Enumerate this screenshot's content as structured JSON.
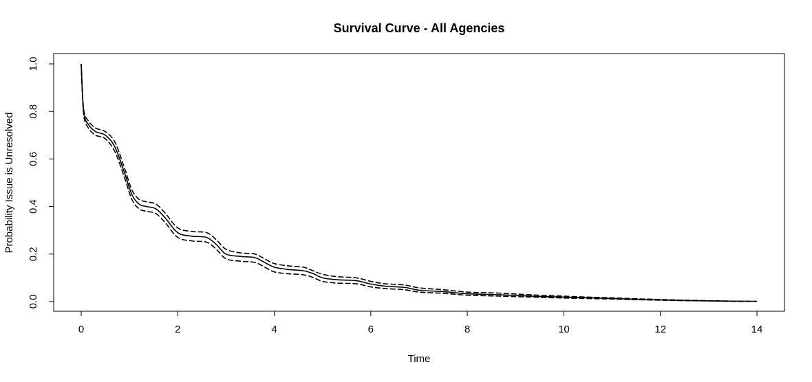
{
  "chart_data": {
    "type": "line",
    "title": "Survival Curve - All Agencies",
    "xlabel": "Time",
    "ylabel": "Probability Issue is Unresolved",
    "xlim": [
      0,
      14
    ],
    "ylim": [
      0,
      1
    ],
    "x_ticks": [
      "0",
      "2",
      "4",
      "6",
      "8",
      "10",
      "12",
      "14"
    ],
    "y_ticks": [
      "0.0",
      "0.2",
      "0.4",
      "0.6",
      "0.8",
      "1.0"
    ],
    "grid": false,
    "legend": "none",
    "line_color": "#000000",
    "series": [
      {
        "style": "dashed",
        "x": [
          0,
          0.05,
          0.15,
          0.3,
          0.5,
          0.7,
          0.9,
          1.05,
          1.2,
          1.35,
          1.55,
          1.75,
          2.0,
          2.3,
          2.6,
          2.8,
          3.0,
          3.3,
          3.6,
          3.8,
          4.0,
          4.3,
          4.6,
          4.8,
          5.0,
          5.3,
          5.7,
          6.0,
          6.3,
          6.7,
          7.0,
          7.5,
          8.0,
          8.5,
          9.0,
          9.5,
          10.0,
          10.5,
          11.0,
          11.5,
          12.0,
          12.5,
          13.0,
          13.5,
          14.0
        ],
        "y": [
          1.0,
          0.81,
          0.76,
          0.73,
          0.715,
          0.67,
          0.56,
          0.47,
          0.43,
          0.42,
          0.41,
          0.37,
          0.31,
          0.295,
          0.29,
          0.26,
          0.22,
          0.205,
          0.2,
          0.18,
          0.16,
          0.15,
          0.145,
          0.13,
          0.115,
          0.105,
          0.1,
          0.085,
          0.075,
          0.07,
          0.058,
          0.05,
          0.04,
          0.037,
          0.032,
          0.027,
          0.023,
          0.019,
          0.016,
          0.012,
          0.009,
          0.006,
          0.004,
          0.002,
          0.001
        ]
      },
      {
        "style": "solid",
        "x": [
          0,
          0.05,
          0.15,
          0.3,
          0.5,
          0.7,
          0.9,
          1.05,
          1.2,
          1.35,
          1.55,
          1.75,
          2.0,
          2.3,
          2.6,
          2.8,
          3.0,
          3.3,
          3.6,
          3.8,
          4.0,
          4.3,
          4.6,
          4.8,
          5.0,
          5.3,
          5.7,
          6.0,
          6.3,
          6.7,
          7.0,
          7.5,
          8.0,
          8.5,
          9.0,
          9.5,
          10.0,
          10.5,
          11.0,
          11.5,
          12.0,
          12.5,
          13.0,
          13.5,
          14.0
        ],
        "y": [
          1.0,
          0.8,
          0.745,
          0.715,
          0.7,
          0.65,
          0.54,
          0.45,
          0.41,
          0.4,
          0.39,
          0.35,
          0.29,
          0.275,
          0.27,
          0.24,
          0.2,
          0.19,
          0.185,
          0.165,
          0.145,
          0.135,
          0.13,
          0.118,
          0.1,
          0.092,
          0.088,
          0.074,
          0.065,
          0.06,
          0.048,
          0.042,
          0.033,
          0.03,
          0.026,
          0.022,
          0.019,
          0.016,
          0.013,
          0.01,
          0.007,
          0.005,
          0.003,
          0.002,
          0.001
        ]
      },
      {
        "style": "dashed",
        "x": [
          0,
          0.05,
          0.15,
          0.3,
          0.5,
          0.7,
          0.9,
          1.05,
          1.2,
          1.35,
          1.55,
          1.75,
          2.0,
          2.3,
          2.6,
          2.8,
          3.0,
          3.3,
          3.6,
          3.8,
          4.0,
          4.3,
          4.6,
          4.8,
          5.0,
          5.3,
          5.7,
          6.0,
          6.3,
          6.7,
          7.0,
          7.5,
          8.0,
          8.5,
          9.0,
          9.5,
          10.0,
          10.5,
          11.0,
          11.5,
          12.0,
          12.5,
          13.0,
          13.5,
          14.0
        ],
        "y": [
          1.0,
          0.79,
          0.73,
          0.7,
          0.685,
          0.63,
          0.52,
          0.43,
          0.39,
          0.38,
          0.37,
          0.33,
          0.27,
          0.255,
          0.25,
          0.22,
          0.18,
          0.17,
          0.165,
          0.145,
          0.125,
          0.117,
          0.113,
          0.102,
          0.085,
          0.078,
          0.075,
          0.062,
          0.055,
          0.05,
          0.04,
          0.035,
          0.027,
          0.024,
          0.021,
          0.018,
          0.015,
          0.013,
          0.011,
          0.008,
          0.006,
          0.004,
          0.003,
          0.001,
          0.001
        ]
      }
    ]
  }
}
